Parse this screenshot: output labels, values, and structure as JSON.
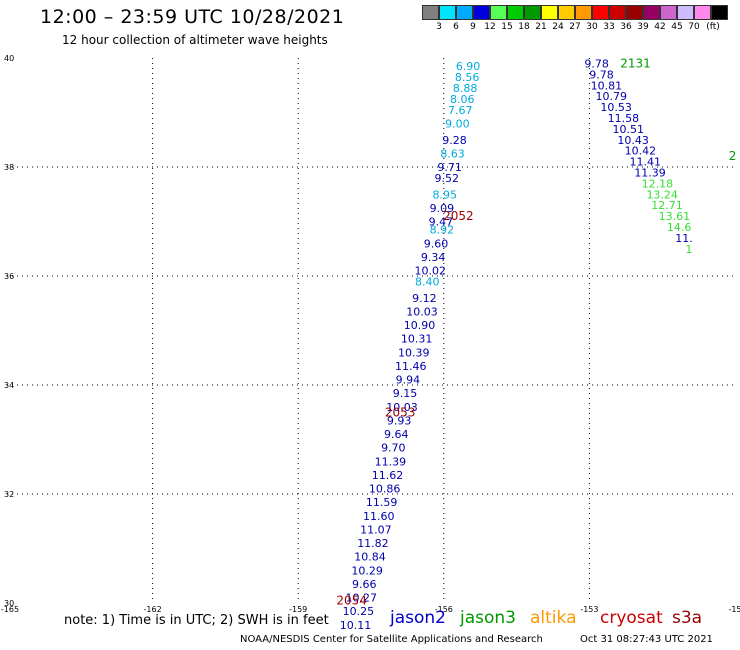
{
  "header": {
    "title": "12:00 – 23:59 UTC 10/28/2021",
    "subtitle": "12 hour collection of altimeter wave heights"
  },
  "legend": {
    "colors": [
      "#808080",
      "#00e5ff",
      "#00aaff",
      "#0000dd",
      "#55ff55",
      "#00cc00",
      "#009900",
      "#ffff00",
      "#ffcc00",
      "#ff9900",
      "#ff0000",
      "#cc0000",
      "#990000",
      "#990066",
      "#cc66cc",
      "#ccbbff",
      "#ff88ee",
      "#000000"
    ],
    "labels": [
      "3",
      "6",
      "9",
      "12",
      "15",
      "18",
      "21",
      "24",
      "27",
      "30",
      "33",
      "36",
      "39",
      "42",
      "45",
      "70",
      "(ft)"
    ]
  },
  "note": "note: 1) Time is in UTC; 2) SWH is in feet",
  "satellites": [
    {
      "name": "jason2",
      "color": "#0000cc"
    },
    {
      "name": "jason3",
      "color": "#009900"
    },
    {
      "name": "altika",
      "color": "#ff9900"
    },
    {
      "name": "cryosat",
      "color": "#cc0000"
    },
    {
      "name": "s3a",
      "color": "#990000"
    }
  ],
  "footer": {
    "credit": "NOAA/NESDIS Center for Satellite Applications and Research",
    "timestamp": "Oct 31 08:27:43 UTC 2021"
  },
  "chart_data": {
    "type": "scatter",
    "xlim": [
      -165,
      -150
    ],
    "ylim": [
      30,
      40
    ],
    "x_ticks": [
      "-165",
      "-162",
      "-159",
      "-156",
      "-153",
      "-15"
    ],
    "y_ticks": [
      "30",
      "32",
      "34",
      "36",
      "38",
      "40"
    ],
    "grid": true,
    "times": [
      {
        "label": "2052",
        "lon": -155.7,
        "lat": 37.1,
        "color": "#990000"
      },
      {
        "label": "2053",
        "lon": -156.9,
        "lat": 33.5,
        "color": "#990000"
      },
      {
        "label": "2054",
        "lon": -157.9,
        "lat": 30.05,
        "color": "#990000"
      },
      {
        "label": "2131",
        "lon": -152.05,
        "lat": 39.9,
        "color": "#009900"
      },
      {
        "label": "2",
        "lon": -150.05,
        "lat": 38.2,
        "color": "#009900"
      }
    ],
    "series": [
      {
        "name": "jason2",
        "points": [
          {
            "lon": -155.5,
            "lat": 39.85,
            "v": "6.90",
            "c": "#00aadd"
          },
          {
            "lon": -155.52,
            "lat": 39.65,
            "v": "8.56",
            "c": "#00aadd"
          },
          {
            "lon": -155.56,
            "lat": 39.45,
            "v": "8.88",
            "c": "#00aadd"
          },
          {
            "lon": -155.62,
            "lat": 39.25,
            "v": "8.06",
            "c": "#00aadd"
          },
          {
            "lon": -155.66,
            "lat": 39.05,
            "v": "7.67",
            "c": "#00aadd"
          },
          {
            "lon": -155.72,
            "lat": 38.8,
            "v": "9.00",
            "c": "#00aadd"
          },
          {
            "lon": -155.78,
            "lat": 38.5,
            "v": "9.28",
            "c": "#0000aa"
          },
          {
            "lon": -155.82,
            "lat": 38.25,
            "v": "8.63",
            "c": "#00aadd"
          },
          {
            "lon": -155.88,
            "lat": 38.0,
            "v": "9.71",
            "c": "#0000aa"
          },
          {
            "lon": -155.94,
            "lat": 37.8,
            "v": "9.52",
            "c": "#0000aa"
          },
          {
            "lon": -155.98,
            "lat": 37.5,
            "v": "8.95",
            "c": "#00aadd"
          },
          {
            "lon": -156.04,
            "lat": 37.25,
            "v": "9.09",
            "c": "#0000aa"
          },
          {
            "lon": -156.06,
            "lat": 37.0,
            "v": "9.47",
            "c": "#0000aa"
          },
          {
            "lon": -156.04,
            "lat": 36.85,
            "v": "8.92",
            "c": "#00aadd"
          },
          {
            "lon": -156.16,
            "lat": 36.6,
            "v": "9.60",
            "c": "#0000aa"
          },
          {
            "lon": -156.22,
            "lat": 36.35,
            "v": "9.34",
            "c": "#0000aa"
          },
          {
            "lon": -156.28,
            "lat": 36.1,
            "v": "10.02",
            "c": "#0000aa"
          },
          {
            "lon": -156.34,
            "lat": 35.9,
            "v": "8.40",
            "c": "#00aadd"
          },
          {
            "lon": -156.4,
            "lat": 35.6,
            "v": "9.12",
            "c": "#0000aa"
          },
          {
            "lon": -156.45,
            "lat": 35.35,
            "v": "10.03",
            "c": "#0000aa"
          },
          {
            "lon": -156.5,
            "lat": 35.1,
            "v": "10.90",
            "c": "#0000aa"
          },
          {
            "lon": -156.56,
            "lat": 34.85,
            "v": "10.31",
            "c": "#0000aa"
          },
          {
            "lon": -156.62,
            "lat": 34.6,
            "v": "10.39",
            "c": "#0000aa"
          },
          {
            "lon": -156.68,
            "lat": 34.35,
            "v": "11.46",
            "c": "#0000aa"
          },
          {
            "lon": -156.74,
            "lat": 34.1,
            "v": "9.94",
            "c": "#0000aa"
          },
          {
            "lon": -156.8,
            "lat": 33.85,
            "v": "9.15",
            "c": "#0000aa"
          },
          {
            "lon": -156.86,
            "lat": 33.6,
            "v": "10.03",
            "c": "#0000aa"
          },
          {
            "lon": -156.92,
            "lat": 33.35,
            "v": "9.93",
            "c": "#0000aa"
          },
          {
            "lon": -156.98,
            "lat": 33.1,
            "v": "9.64",
            "c": "#0000aa"
          },
          {
            "lon": -157.04,
            "lat": 32.85,
            "v": "9.70",
            "c": "#0000aa"
          },
          {
            "lon": -157.1,
            "lat": 32.6,
            "v": "11.39",
            "c": "#0000aa"
          },
          {
            "lon": -157.16,
            "lat": 32.35,
            "v": "11.62",
            "c": "#0000aa"
          },
          {
            "lon": -157.22,
            "lat": 32.1,
            "v": "10.86",
            "c": "#0000aa"
          },
          {
            "lon": -157.28,
            "lat": 31.85,
            "v": "11.59",
            "c": "#0000aa"
          },
          {
            "lon": -157.34,
            "lat": 31.6,
            "v": "11.60",
            "c": "#0000aa"
          },
          {
            "lon": -157.4,
            "lat": 31.35,
            "v": "11.07",
            "c": "#0000aa"
          },
          {
            "lon": -157.46,
            "lat": 31.1,
            "v": "11.82",
            "c": "#0000aa"
          },
          {
            "lon": -157.52,
            "lat": 30.85,
            "v": "10.84",
            "c": "#0000aa"
          },
          {
            "lon": -157.58,
            "lat": 30.6,
            "v": "10.29",
            "c": "#0000aa"
          },
          {
            "lon": -157.64,
            "lat": 30.35,
            "v": "9.66",
            "c": "#0000aa"
          },
          {
            "lon": -157.7,
            "lat": 30.1,
            "v": "10.27",
            "c": "#0000aa"
          },
          {
            "lon": -157.76,
            "lat": 29.85,
            "v": "10.25",
            "c": "#0000aa"
          },
          {
            "lon": -157.82,
            "lat": 29.6,
            "v": "10.11",
            "c": "#0000aa"
          }
        ]
      },
      {
        "name": "jason3",
        "points": [
          {
            "lon": -152.85,
            "lat": 39.9,
            "v": "9.78",
            "c": "#0000aa"
          },
          {
            "lon": -152.75,
            "lat": 39.7,
            "v": "9.78",
            "c": "#0000aa"
          },
          {
            "lon": -152.65,
            "lat": 39.5,
            "v": "10.81",
            "c": "#0000aa"
          },
          {
            "lon": -152.55,
            "lat": 39.3,
            "v": "10.79",
            "c": "#0000aa"
          },
          {
            "lon": -152.45,
            "lat": 39.1,
            "v": "10.53",
            "c": "#0000aa"
          },
          {
            "lon": -152.3,
            "lat": 38.9,
            "v": "11.58",
            "c": "#0000aa"
          },
          {
            "lon": -152.2,
            "lat": 38.7,
            "v": "10.51",
            "c": "#0000aa"
          },
          {
            "lon": -152.1,
            "lat": 38.5,
            "v": "10.43",
            "c": "#0000aa"
          },
          {
            "lon": -151.95,
            "lat": 38.3,
            "v": "10.42",
            "c": "#0000aa"
          },
          {
            "lon": -151.85,
            "lat": 38.1,
            "v": "11.41",
            "c": "#0000aa"
          },
          {
            "lon": -151.75,
            "lat": 37.9,
            "v": "11.39",
            "c": "#0000aa"
          },
          {
            "lon": -151.6,
            "lat": 37.7,
            "v": "12.18",
            "c": "#33dd33"
          },
          {
            "lon": -151.5,
            "lat": 37.5,
            "v": "13.24",
            "c": "#33dd33"
          },
          {
            "lon": -151.4,
            "lat": 37.3,
            "v": "12.71",
            "c": "#33dd33"
          },
          {
            "lon": -151.25,
            "lat": 37.1,
            "v": "13.61",
            "c": "#33dd33"
          },
          {
            "lon": -151.15,
            "lat": 36.9,
            "v": "14.6",
            "c": "#33dd33"
          },
          {
            "lon": -151.05,
            "lat": 36.7,
            "v": "11.",
            "c": "#0000aa"
          },
          {
            "lon": -150.95,
            "lat": 36.5,
            "v": "1",
            "c": "#33dd33"
          }
        ]
      }
    ]
  }
}
